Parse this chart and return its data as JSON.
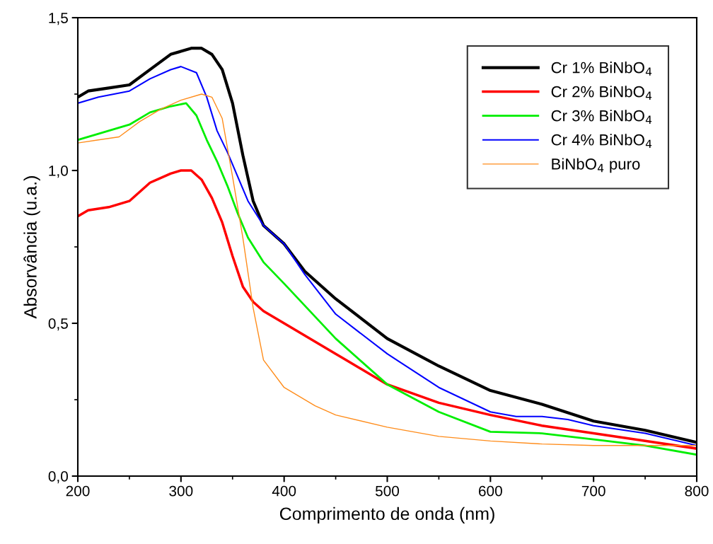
{
  "chart_data": {
    "type": "line",
    "xlabel": "Comprimento de onda (nm)",
    "ylabel": "Absorvância (u.a.)",
    "xlim": [
      200,
      800
    ],
    "xticks": [
      200,
      300,
      400,
      500,
      600,
      700,
      800
    ],
    "ylim": [
      0,
      1.5
    ],
    "yticks": [
      {
        "value": 0,
        "label": "0,0"
      },
      {
        "value": 0.5,
        "label": "0,5"
      },
      {
        "value": 1.0,
        "label": "1,0"
      },
      {
        "value": 1.5,
        "label": "1,5"
      }
    ],
    "grid": false,
    "legend": "top right",
    "marker": "none",
    "line_style": "solid",
    "series": [
      {
        "name": "Cr 1% BiNbO$_{4}$",
        "color": "#000000",
        "x": [
          200,
          210,
          230,
          250,
          270,
          290,
          300,
          310,
          320,
          330,
          340,
          350,
          360,
          370,
          380,
          400,
          420,
          450,
          500,
          550,
          600,
          650,
          700,
          750,
          800
        ],
        "values": [
          1.24,
          1.26,
          1.27,
          1.28,
          1.33,
          1.38,
          1.39,
          1.4,
          1.4,
          1.38,
          1.33,
          1.22,
          1.05,
          0.9,
          0.82,
          0.76,
          0.67,
          0.58,
          0.45,
          0.36,
          0.28,
          0.235,
          0.18,
          0.15,
          0.11
        ]
      },
      {
        "name": "Cr 2% BiNbO$_{4}$",
        "color": "#ff0000",
        "x": [
          200,
          210,
          230,
          250,
          270,
          290,
          300,
          310,
          320,
          330,
          340,
          350,
          360,
          370,
          380,
          400,
          450,
          500,
          550,
          600,
          650,
          700,
          750,
          800
        ],
        "values": [
          0.85,
          0.87,
          0.88,
          0.9,
          0.96,
          0.99,
          1.0,
          1.0,
          0.97,
          0.91,
          0.83,
          0.72,
          0.62,
          0.57,
          0.54,
          0.5,
          0.4,
          0.3,
          0.24,
          0.2,
          0.165,
          0.14,
          0.115,
          0.09
        ]
      },
      {
        "name": "Cr 3% BiNbO$_{4}$",
        "color": "#00ee00",
        "x": [
          200,
          220,
          250,
          270,
          290,
          305,
          315,
          325,
          335,
          345,
          355,
          365,
          380,
          400,
          450,
          500,
          550,
          600,
          650,
          700,
          750,
          800
        ],
        "values": [
          1.1,
          1.12,
          1.15,
          1.19,
          1.21,
          1.22,
          1.18,
          1.1,
          1.03,
          0.95,
          0.86,
          0.78,
          0.7,
          0.63,
          0.45,
          0.3,
          0.21,
          0.145,
          0.14,
          0.12,
          0.1,
          0.07
        ]
      },
      {
        "name": "Cr 4% BiNbO$_{4}$",
        "color": "#0000ff",
        "x": [
          200,
          220,
          250,
          270,
          290,
          300,
          315,
          325,
          335,
          345,
          355,
          365,
          380,
          400,
          420,
          450,
          500,
          550,
          600,
          625,
          650,
          675,
          700,
          750,
          800
        ],
        "values": [
          1.22,
          1.24,
          1.26,
          1.3,
          1.33,
          1.34,
          1.32,
          1.24,
          1.13,
          1.06,
          0.98,
          0.9,
          0.82,
          0.76,
          0.66,
          0.53,
          0.4,
          0.29,
          0.21,
          0.195,
          0.195,
          0.185,
          0.165,
          0.14,
          0.1
        ]
      },
      {
        "name": "BiNbO$_{4}$ puro",
        "color": "#ff8c1a",
        "x": [
          200,
          220,
          240,
          260,
          280,
          300,
          320,
          330,
          340,
          350,
          360,
          370,
          380,
          400,
          430,
          450,
          500,
          550,
          600,
          650,
          700,
          750,
          800
        ],
        "values": [
          1.09,
          1.1,
          1.11,
          1.16,
          1.2,
          1.23,
          1.25,
          1.24,
          1.17,
          0.98,
          0.78,
          0.55,
          0.38,
          0.29,
          0.23,
          0.2,
          0.16,
          0.13,
          0.115,
          0.105,
          0.1,
          0.1,
          0.1
        ]
      }
    ]
  }
}
